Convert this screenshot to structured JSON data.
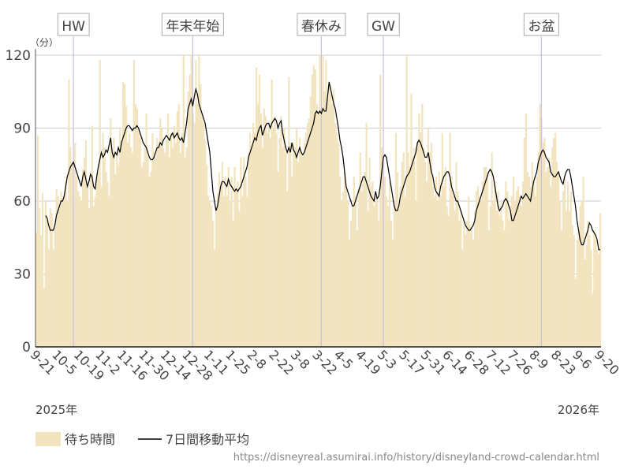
{
  "chart_data": {
    "type": "bar",
    "unit_label": "（分）",
    "year_labels": [
      "2025年",
      "2026年"
    ],
    "source": "https://disneyreal.asumirai.info/history/disneyland-crowd-calendar.html",
    "ylim": [
      0,
      120
    ],
    "yticks": [
      0,
      30,
      60,
      90,
      120
    ],
    "grid": true,
    "annotations": [
      {
        "label": "HW",
        "index": 24
      },
      {
        "label": "年末年始",
        "index": 101
      },
      {
        "label": "春休み",
        "index": 184
      },
      {
        "label": "GW",
        "index": 224
      },
      {
        "label": "お盆",
        "index": 326
      }
    ],
    "categories": [
      "9-21",
      null,
      null,
      null,
      null,
      null,
      null,
      null,
      null,
      null,
      null,
      null,
      null,
      null,
      "10-5",
      null,
      null,
      null,
      null,
      null,
      null,
      null,
      null,
      null,
      null,
      null,
      null,
      null,
      "10-19",
      null,
      null,
      null,
      null,
      null,
      null,
      null,
      null,
      null,
      null,
      null,
      null,
      null,
      "11-2",
      null,
      null,
      null,
      null,
      null,
      null,
      null,
      null,
      null,
      null,
      null,
      null,
      null,
      "11-16",
      null,
      null,
      null,
      null,
      null,
      null,
      null,
      null,
      null,
      null,
      null,
      null,
      null,
      "11-30",
      null,
      null,
      null,
      null,
      null,
      null,
      null,
      null,
      null,
      null,
      null,
      null,
      null,
      "12-14",
      null,
      null,
      null,
      null,
      null,
      null,
      null,
      null,
      null,
      null,
      null,
      null,
      null,
      "12-28",
      null,
      null,
      null,
      null,
      null,
      null,
      null,
      null,
      null,
      null,
      null,
      null,
      null,
      "1-11",
      null,
      null,
      null,
      null,
      null,
      null,
      null,
      null,
      null,
      null,
      null,
      null,
      null,
      "1-25",
      null,
      null,
      null,
      null,
      null,
      null,
      null,
      null,
      null,
      null,
      null,
      null,
      null,
      "2-8",
      null,
      null,
      null,
      null,
      null,
      null,
      null,
      null,
      null,
      null,
      null,
      null,
      null,
      "2-22",
      null,
      null,
      null,
      null,
      null,
      null,
      null,
      null,
      null,
      null,
      null,
      null,
      null,
      "3-8",
      null,
      null,
      null,
      null,
      null,
      null,
      null,
      null,
      null,
      null,
      null,
      null,
      null,
      "3-22",
      null,
      null,
      null,
      null,
      null,
      null,
      null,
      null,
      null,
      null,
      null,
      null,
      null,
      "4-5",
      null,
      null,
      null,
      null,
      null,
      null,
      null,
      null,
      null,
      null,
      null,
      null,
      null,
      "4-19",
      null,
      null,
      null,
      null,
      null,
      null,
      null,
      null,
      null,
      null,
      null,
      null,
      null,
      "5-3",
      null,
      null,
      null,
      null,
      null,
      null,
      null,
      null,
      null,
      null,
      null,
      null,
      null,
      "5-17",
      null,
      null,
      null,
      null,
      null,
      null,
      null,
      null,
      null,
      null,
      null,
      null,
      null,
      "5-31",
      null,
      null,
      null,
      null,
      null,
      null,
      null,
      null,
      null,
      null,
      null,
      null,
      null,
      "6-14",
      null,
      null,
      null,
      null,
      null,
      null,
      null,
      null,
      null,
      null,
      null,
      null,
      null,
      "6-28",
      null,
      null,
      null,
      null,
      null,
      null,
      null,
      null,
      null,
      null,
      null,
      null,
      null,
      "7-12",
      null,
      null,
      null,
      null,
      null,
      null,
      null,
      null,
      null,
      null,
      null,
      null,
      null,
      "7-26",
      null,
      null,
      null,
      null,
      null,
      null,
      null,
      null,
      null,
      null,
      null,
      null,
      null,
      "8-9",
      null,
      null,
      null,
      null,
      null,
      null,
      null,
      null,
      null,
      null,
      null,
      null,
      null,
      "8-23",
      null,
      null,
      null,
      null,
      null,
      null,
      null,
      null,
      null,
      null,
      null,
      null,
      null,
      "9-6",
      null,
      null,
      null,
      null,
      null,
      null,
      null,
      null,
      null,
      null,
      null,
      null,
      null,
      "9-20"
    ],
    "series": [
      {
        "name": "待ち時間",
        "type": "bar",
        "color": "#f2e4bf",
        "values": [
          47,
          87,
          57,
          46,
          63,
          24,
          60,
          52,
          40,
          57,
          55,
          40,
          50,
          65,
          62,
          58,
          64,
          60,
          62,
          68,
          60,
          110,
          82,
          76,
          58,
          84,
          70,
          64,
          62,
          60,
          73,
          78,
          85,
          66,
          57,
          72,
          91,
          58,
          62,
          70,
          72,
          118,
          66,
          88,
          82,
          72,
          68,
          62,
          94,
          80,
          86,
          71,
          80,
          75,
          90,
          85,
          109,
          108,
          99,
          84,
          88,
          82,
          80,
          118,
          100,
          98,
          90,
          86,
          74,
          76,
          82,
          96,
          78,
          70,
          72,
          88,
          80,
          78,
          86,
          84,
          94,
          90,
          82,
          80,
          85,
          96,
          78,
          88,
          82,
          91,
          84,
          97,
          100,
          80,
          88,
          120,
          78,
          82,
          105,
          112,
          120,
          96,
          92,
          118,
          100,
          120,
          108,
          96,
          92,
          85,
          75,
          62,
          60,
          58,
          52,
          40,
          56,
          63,
          72,
          68,
          76,
          62,
          70,
          62,
          74,
          60,
          70,
          52,
          74,
          64,
          68,
          56,
          78,
          62,
          78,
          70,
          62,
          80,
          88,
          82,
          92,
          88,
          115,
          100,
          112,
          96,
          82,
          98,
          95,
          88,
          92,
          86,
          110,
          90,
          94,
          88,
          72,
          86,
          95,
          82,
          90,
          80,
          64,
          111,
          84,
          70,
          84,
          82,
          90,
          76,
          86,
          80,
          78,
          84,
          88,
          92,
          94,
          103,
          112,
          116,
          114,
          100,
          96,
          120,
          98,
          120,
          105,
          118,
          102,
          108,
          104,
          100,
          106,
          92,
          88,
          84,
          70,
          60,
          64,
          72,
          66,
          60,
          44,
          52,
          58,
          70,
          62,
          48,
          66,
          80,
          64,
          69,
          72,
          92,
          56,
          78,
          66,
          68,
          58,
          62,
          60,
          52,
          112,
          82,
          76,
          70,
          62,
          58,
          68,
          52,
          44,
          60,
          88,
          72,
          58,
          66,
          76,
          80,
          62,
          120,
          80,
          74,
          104,
          78,
          82,
          60,
          84,
          96,
          88,
          100,
          82,
          76,
          68,
          90,
          80,
          84,
          66,
          62,
          70,
          60,
          72,
          62,
          88,
          66,
          74,
          58,
          54,
          88,
          70,
          62,
          56,
          76,
          64,
          52,
          56,
          40,
          50,
          46,
          52,
          62,
          50,
          48,
          44,
          56,
          64,
          66,
          62,
          60,
          68,
          74,
          74,
          72,
          48,
          58,
          80,
          60,
          68,
          56,
          64,
          54,
          60,
          52,
          48,
          68,
          64,
          52,
          58,
          62,
          70,
          60,
          64,
          66,
          62,
          58,
          68,
          86,
          96,
          72,
          70,
          66,
          76,
          68,
          62,
          70,
          80,
          100,
          94,
          84,
          86,
          72,
          74,
          78,
          66,
          82,
          86,
          88,
          76,
          72,
          60,
          48,
          64,
          70,
          56,
          68,
          56,
          64,
          50,
          46,
          28,
          44,
          48,
          58,
          60,
          70,
          36,
          42,
          52,
          46,
          40,
          22,
          48,
          44,
          40,
          38,
          55
        ]
      },
      {
        "name": "7日間移動平均",
        "type": "line",
        "color": "#000000",
        "values": [
          null,
          null,
          null,
          null,
          null,
          null,
          54,
          53,
          50,
          48,
          48,
          48,
          50,
          54,
          56,
          58,
          60,
          60,
          62,
          66,
          70,
          72,
          74,
          75,
          76,
          74,
          72,
          70,
          68,
          66,
          70,
          72,
          69,
          66,
          68,
          71,
          70,
          66,
          65,
          70,
          74,
          77,
          80,
          78,
          79,
          81,
          80,
          83,
          86,
          80,
          78,
          80,
          79,
          82,
          80,
          84,
          86,
          88,
          90,
          91,
          91,
          90,
          89,
          90,
          90,
          91,
          90,
          88,
          86,
          84,
          83,
          82,
          80,
          78,
          77,
          77,
          78,
          80,
          82,
          82,
          84,
          83,
          85,
          86,
          87,
          86,
          85,
          87,
          88,
          86,
          87,
          88,
          86,
          85,
          86,
          84,
          88,
          92,
          98,
          100,
          102,
          99,
          103,
          106,
          104,
          100,
          98,
          96,
          94,
          92,
          88,
          84,
          80,
          72,
          64,
          60,
          56,
          58,
          62,
          66,
          68,
          68,
          67,
          66,
          69,
          67,
          66,
          65,
          64,
          65,
          64,
          65,
          66,
          68,
          70,
          72,
          74,
          78,
          80,
          82,
          84,
          86,
          85,
          88,
          90,
          91,
          87,
          89,
          91,
          92,
          92,
          90,
          92,
          93,
          94,
          93,
          90,
          92,
          93,
          88,
          85,
          82,
          80,
          82,
          80,
          84,
          81,
          80,
          78,
          80,
          82,
          80,
          79,
          80,
          82,
          84,
          86,
          88,
          90,
          92,
          96,
          97,
          96,
          97,
          96,
          98,
          97,
          97,
          103,
          109,
          106,
          103,
          100,
          98,
          94,
          90,
          85,
          82,
          78,
          72,
          66,
          64,
          62,
          60,
          58,
          58,
          60,
          62,
          64,
          66,
          68,
          70,
          70,
          68,
          66,
          64,
          62,
          61,
          60,
          64,
          61,
          62,
          66,
          72,
          78,
          79,
          78,
          74,
          70,
          66,
          62,
          58,
          56,
          56,
          58,
          62,
          64,
          66,
          68,
          70,
          71,
          72,
          74,
          76,
          78,
          80,
          84,
          85,
          84,
          82,
          80,
          78,
          78,
          80,
          76,
          72,
          70,
          66,
          64,
          63,
          62,
          66,
          68,
          70,
          71,
          72,
          72,
          70,
          66,
          64,
          62,
          60,
          60,
          58,
          56,
          54,
          52,
          50,
          49,
          48,
          48,
          49,
          50,
          52,
          56,
          58,
          60,
          62,
          64,
          66,
          68,
          70,
          72,
          73,
          72,
          70,
          66,
          62,
          58,
          56,
          57,
          58,
          60,
          61,
          60,
          58,
          56,
          52,
          52,
          54,
          56,
          58,
          60,
          62,
          61,
          62,
          63,
          62,
          61,
          60,
          64,
          68,
          70,
          72,
          76,
          78,
          80,
          81,
          80,
          78,
          77,
          76,
          72,
          71,
          70,
          70,
          71,
          72,
          70,
          68,
          67,
          70,
          72,
          73,
          73,
          70,
          66,
          62,
          58,
          52,
          48,
          44,
          42,
          42,
          44,
          46,
          48,
          51,
          50,
          48,
          47,
          46,
          44,
          40,
          40
        ]
      }
    ]
  }
}
